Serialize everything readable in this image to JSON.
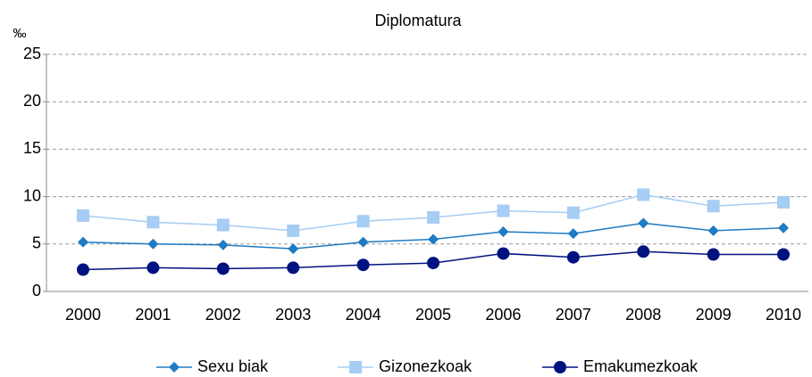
{
  "chart_data": {
    "type": "line",
    "title": "Diplomatura",
    "y_axis_label": "‰",
    "categories": [
      "2000",
      "2001",
      "2002",
      "2003",
      "2004",
      "2005",
      "2006",
      "2007",
      "2008",
      "2009",
      "2010"
    ],
    "series": [
      {
        "name": "Sexu biak",
        "color": "#1e7bc4",
        "marker": "diamond",
        "values": [
          5.2,
          5.0,
          4.9,
          4.5,
          5.2,
          5.5,
          6.3,
          6.1,
          7.2,
          6.4,
          6.7
        ]
      },
      {
        "name": "Gizonezkoak",
        "color": "#a6cdf4",
        "marker": "square",
        "values": [
          8.0,
          7.3,
          7.0,
          6.4,
          7.4,
          7.8,
          8.5,
          8.3,
          10.2,
          9.0,
          9.4
        ]
      },
      {
        "name": "Emakumezkoak",
        "color": "#00127f",
        "marker": "circle",
        "values": [
          2.3,
          2.5,
          2.4,
          2.5,
          2.8,
          3.0,
          4.0,
          3.6,
          4.2,
          3.9,
          3.9
        ]
      }
    ],
    "ylim": [
      0,
      25
    ],
    "yticks": [
      0,
      5,
      10,
      15,
      20,
      25
    ],
    "grid": true,
    "legend": "bottom"
  }
}
